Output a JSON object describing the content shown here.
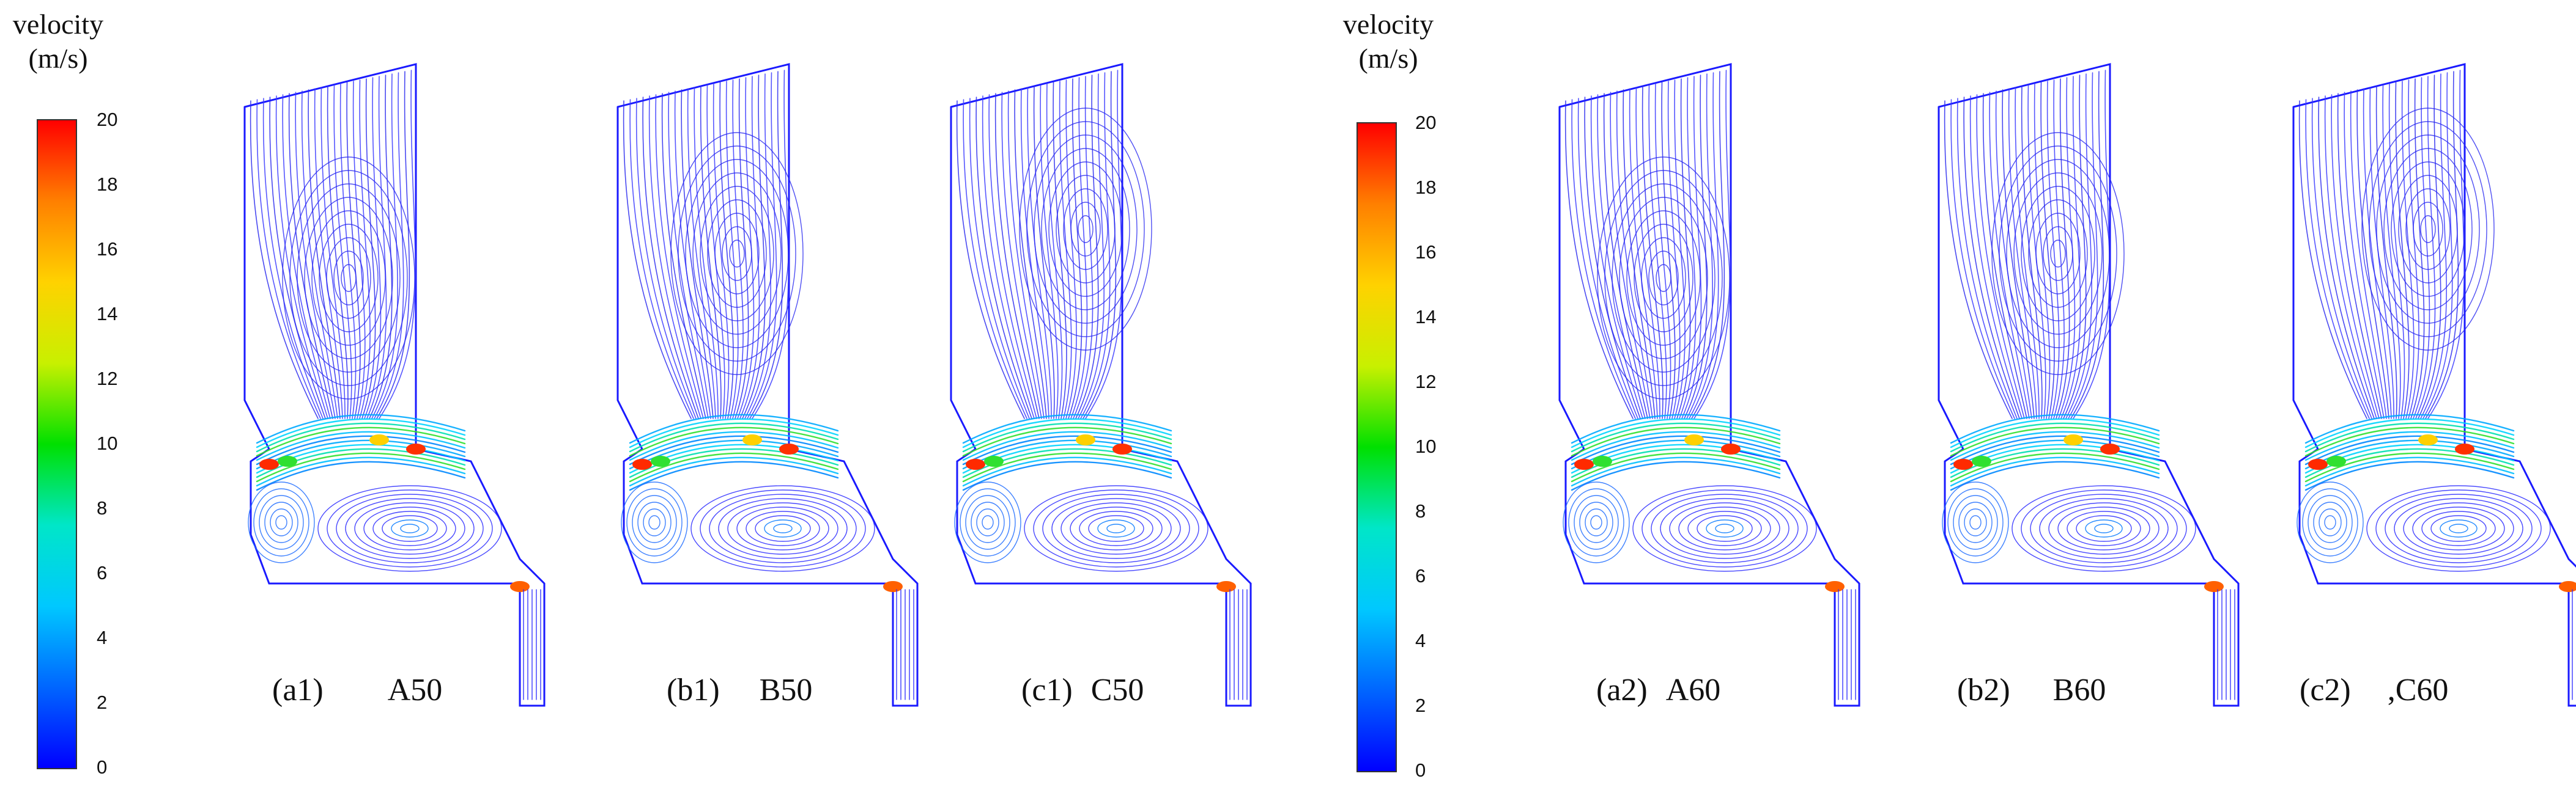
{
  "legends": [
    {
      "title_line1": "velocity",
      "title_line2": "(m/s)",
      "ticks": [
        "20",
        "18",
        "16",
        "14",
        "12",
        "10",
        "8",
        "6",
        "4",
        "2",
        "0"
      ]
    },
    {
      "title_line1": "velocity",
      "title_line2": "(m/s)",
      "ticks": [
        "20",
        "18",
        "16",
        "14",
        "12",
        "10",
        "8",
        "6",
        "4",
        "2",
        "0"
      ]
    }
  ],
  "colormap": [
    "#0000ff",
    "#0066ff",
    "#00c8ff",
    "#00e6c8",
    "#00e000",
    "#c8f000",
    "#ffd200",
    "#ff8000",
    "#ff0000"
  ],
  "panels": [
    {
      "label": "(a1)",
      "name": "A50"
    },
    {
      "label": "(b1)",
      "name": "B50"
    },
    {
      "label": "(c1)",
      "name": "C50"
    },
    {
      "label": "(a2)",
      "name": "A60"
    },
    {
      "label": "(b2)",
      "name": "B60"
    },
    {
      "label": "(c2)",
      "name": ",C60"
    }
  ]
}
